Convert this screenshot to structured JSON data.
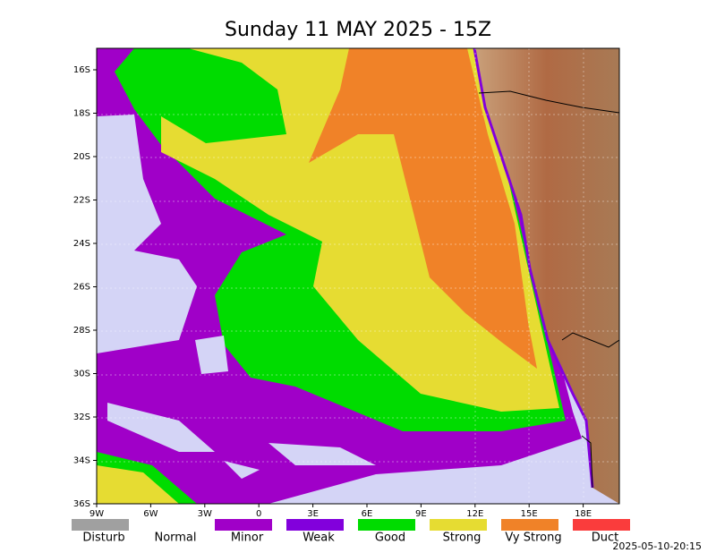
{
  "header": {
    "title": "Sunday 11 MAY 2025 - 15Z"
  },
  "map": {
    "lat_labels": [
      "16S",
      "18S",
      "20S",
      "22S",
      "24S",
      "26S",
      "28S",
      "30S",
      "32S",
      "34S",
      "36S"
    ],
    "lon_labels": [
      "9W",
      "6W",
      "3W",
      "0",
      "3E",
      "6E",
      "9E",
      "12E",
      "15E",
      "18E"
    ]
  },
  "legend": [
    {
      "label": "Disturb",
      "color": "#a0a0a0"
    },
    {
      "label": "Normal",
      "color": "#ffffff"
    },
    {
      "label": "Minor",
      "color": "#a000c8"
    },
    {
      "label": "Weak",
      "color": "#8200dc"
    },
    {
      "label": "Good",
      "color": "#00dc00"
    },
    {
      "label": "Strong",
      "color": "#e6dc32"
    },
    {
      "label": "Vy Strong",
      "color": "#f08228"
    },
    {
      "label": "Duct",
      "color": "#fa3c3c"
    }
  ],
  "footer": {
    "timestamp": "2025-05-10-20:15"
  }
}
